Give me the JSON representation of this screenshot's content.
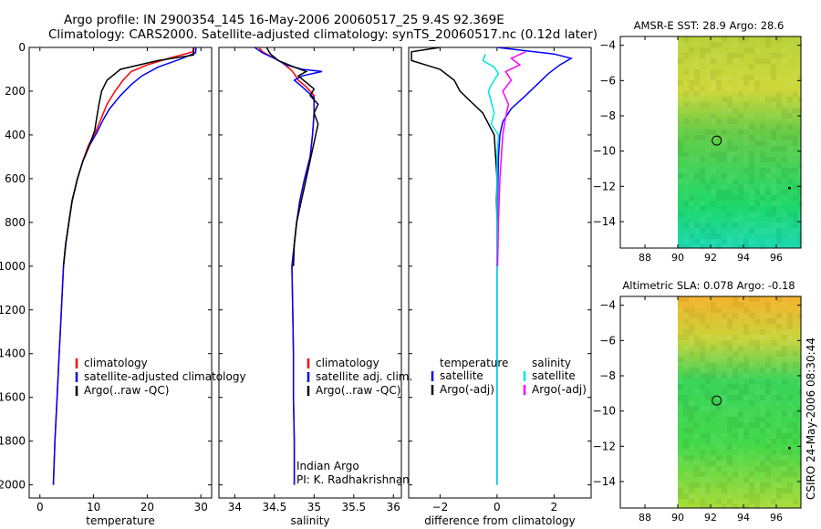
{
  "title": {
    "line1": "Argo profile: IN 2900354_145 16-May-2006 20060517_25 9.4S 92.369E",
    "line2": "Climatology: CARS2000. Satellite-adjusted climatology: synTS_20060517.nc (0.12d later)"
  },
  "side_label": "CSIRO 24-May-2006 08:30:44",
  "colors": {
    "climatology": "#ff0000",
    "satellite": "#0000ff",
    "argo": "#000000",
    "sal_satellite": "#00e5e5",
    "sal_argo": "#ff00ff"
  },
  "chart_data": [
    {
      "type": "line",
      "id": "temperature",
      "xlabel": "temperature",
      "xlim": [
        -2,
        32
      ],
      "xticks": [
        0,
        10,
        20,
        30
      ],
      "ylim": [
        0,
        2060
      ],
      "yreversed": true,
      "yticks": [
        0,
        200,
        400,
        600,
        800,
        1000,
        1200,
        1400,
        1600,
        1800,
        2000
      ],
      "legend": [
        "climatology",
        "satellite-adjusted climatology",
        "Argo(..raw -QC)"
      ],
      "series": [
        {
          "name": "climatology",
          "color": "#ff0000",
          "points": [
            [
              28.6,
              0
            ],
            [
              28.5,
              20
            ],
            [
              24,
              50
            ],
            [
              20,
              80
            ],
            [
              17,
              110
            ],
            [
              15.5,
              150
            ],
            [
              14,
              200
            ],
            [
              12.5,
              260
            ],
            [
              11.5,
              320
            ],
            [
              10.5,
              380
            ],
            [
              9,
              450
            ],
            [
              8,
              520
            ],
            [
              7,
              600
            ],
            [
              6,
              700
            ],
            [
              5.4,
              800
            ],
            [
              4.8,
              900
            ],
            [
              4.4,
              1000
            ],
            [
              4,
              1200
            ],
            [
              3.6,
              1400
            ],
            [
              3.2,
              1600
            ],
            [
              2.8,
              1800
            ],
            [
              2.5,
              2000
            ]
          ]
        },
        {
          "name": "satellite-adjusted climatology",
          "color": "#0000ff",
          "points": [
            [
              29.1,
              0
            ],
            [
              29,
              25
            ],
            [
              26,
              55
            ],
            [
              22,
              90
            ],
            [
              19,
              130
            ],
            [
              17,
              170
            ],
            [
              15,
              220
            ],
            [
              13,
              280
            ],
            [
              11.8,
              330
            ],
            [
              10.6,
              390
            ],
            [
              9.2,
              450
            ],
            [
              8,
              520
            ],
            [
              7,
              600
            ],
            [
              6,
              700
            ],
            [
              5.4,
              800
            ],
            [
              4.8,
              900
            ],
            [
              4.4,
              1000
            ],
            [
              4,
              1200
            ],
            [
              3.6,
              1400
            ],
            [
              3.2,
              1600
            ],
            [
              2.8,
              1800
            ],
            [
              2.5,
              2000
            ]
          ]
        },
        {
          "name": "Argo(..raw -QC)",
          "color": "#000000",
          "points": [
            [
              28.7,
              0
            ],
            [
              28.6,
              35
            ],
            [
              22,
              60
            ],
            [
              15,
              100
            ],
            [
              12.5,
              150
            ],
            [
              11.5,
              200
            ],
            [
              11,
              260
            ],
            [
              10.6,
              320
            ],
            [
              10.2,
              380
            ],
            [
              9.2,
              450
            ],
            [
              8,
              520
            ],
            [
              7,
              600
            ],
            [
              6,
              700
            ],
            [
              5.4,
              800
            ],
            [
              4.8,
              900
            ],
            [
              4.4,
              1000
            ]
          ]
        }
      ]
    },
    {
      "type": "line",
      "id": "salinity",
      "xlabel": "salinity",
      "xlim": [
        33.8,
        36.1
      ],
      "xticks": [
        34,
        34.5,
        35,
        35.5,
        36
      ],
      "xticklabels": [
        "34",
        "34.5",
        "35",
        "35.5",
        "36"
      ],
      "ylim": [
        0,
        2060
      ],
      "yreversed": true,
      "legend": [
        "climatology",
        "satellite adj. clim.",
        "Argo(..raw -QC)"
      ],
      "annotation": [
        "Indian Argo",
        "PI: K. Radhakrishnan"
      ],
      "series": [
        {
          "name": "climatology",
          "color": "#ff0000",
          "points": [
            [
              34.3,
              0
            ],
            [
              34.35,
              20
            ],
            [
              34.45,
              40
            ],
            [
              34.6,
              70
            ],
            [
              34.7,
              100
            ],
            [
              34.75,
              120
            ],
            [
              34.8,
              150
            ],
            [
              34.9,
              180
            ],
            [
              35,
              220
            ],
            [
              35,
              300
            ],
            [
              34.98,
              400
            ],
            [
              34.95,
              500
            ],
            [
              34.88,
              600
            ],
            [
              34.82,
              700
            ],
            [
              34.78,
              800
            ],
            [
              34.75,
              900
            ],
            [
              34.72,
              1000
            ],
            [
              34.73,
              1200
            ],
            [
              34.74,
              1400
            ],
            [
              34.74,
              1600
            ],
            [
              34.75,
              1800
            ],
            [
              34.75,
              2000
            ]
          ]
        },
        {
          "name": "satellite adj. clim.",
          "color": "#0000ff",
          "points": [
            [
              34.25,
              0
            ],
            [
              34.35,
              25
            ],
            [
              34.5,
              50
            ],
            [
              34.65,
              80
            ],
            [
              34.85,
              100
            ],
            [
              35.1,
              110
            ],
            [
              34.85,
              130
            ],
            [
              34.75,
              150
            ],
            [
              34.85,
              180
            ],
            [
              35,
              230
            ],
            [
              35,
              300
            ],
            [
              34.98,
              400
            ],
            [
              34.95,
              500
            ],
            [
              34.88,
              600
            ],
            [
              34.82,
              700
            ],
            [
              34.78,
              800
            ],
            [
              34.75,
              900
            ],
            [
              34.72,
              1000
            ],
            [
              34.73,
              1200
            ],
            [
              34.74,
              1400
            ],
            [
              34.74,
              1600
            ],
            [
              34.75,
              1800
            ],
            [
              34.75,
              2000
            ]
          ]
        },
        {
          "name": "Argo(..raw -QC)",
          "color": "#000000",
          "points": [
            [
              34.4,
              0
            ],
            [
              34.45,
              30
            ],
            [
              34.55,
              60
            ],
            [
              34.75,
              90
            ],
            [
              34.9,
              110
            ],
            [
              34.8,
              130
            ],
            [
              34.9,
              160
            ],
            [
              35,
              190
            ],
            [
              34.95,
              220
            ],
            [
              35.05,
              260
            ],
            [
              35,
              300
            ],
            [
              35.05,
              350
            ],
            [
              35.02,
              400
            ],
            [
              34.96,
              500
            ],
            [
              34.9,
              600
            ],
            [
              34.84,
              700
            ],
            [
              34.78,
              800
            ],
            [
              34.75,
              900
            ],
            [
              34.74,
              1000
            ]
          ]
        }
      ]
    },
    {
      "type": "line",
      "id": "difference",
      "xlabel": "difference from climatology",
      "xlim": [
        -3.1,
        3.3
      ],
      "xticks": [
        -2,
        0,
        2
      ],
      "ylim": [
        0,
        2060
      ],
      "yreversed": true,
      "legend_columns": [
        {
          "title": "temperature",
          "items": [
            "satellite",
            "Argo(-adj)"
          ]
        },
        {
          "title": "salinity",
          "items": [
            "satellite",
            "Argo(-adj)"
          ]
        }
      ],
      "series": [
        {
          "name": "temperature satellite",
          "color": "#0000ff",
          "points": [
            [
              0,
              0
            ],
            [
              1,
              15
            ],
            [
              2,
              30
            ],
            [
              2.6,
              50
            ],
            [
              2.2,
              80
            ],
            [
              1.8,
              120
            ],
            [
              1.4,
              170
            ],
            [
              1,
              220
            ],
            [
              0.5,
              280
            ],
            [
              0.2,
              340
            ],
            [
              0.1,
              400
            ],
            [
              0.05,
              500
            ],
            [
              0.02,
              700
            ],
            [
              0,
              1000
            ],
            [
              0,
              2000
            ]
          ]
        },
        {
          "name": "temperature Argo(-adj)",
          "color": "#000000",
          "points": [
            [
              -2,
              0
            ],
            [
              -3,
              20
            ],
            [
              -3,
              60
            ],
            [
              -2.5,
              80
            ],
            [
              -2,
              100
            ],
            [
              -1.5,
              150
            ],
            [
              -1.3,
              200
            ],
            [
              -0.9,
              250
            ],
            [
              -0.5,
              300
            ],
            [
              -0.3,
              350
            ],
            [
              -0.1,
              400
            ],
            [
              -0.05,
              500
            ],
            [
              0,
              600
            ],
            [
              -0.02,
              700
            ],
            [
              0,
              800
            ],
            [
              0,
              1000
            ]
          ]
        },
        {
          "name": "salinity satellite",
          "color": "#00e5e5",
          "points": [
            [
              -0.4,
              30
            ],
            [
              -0.5,
              60
            ],
            [
              -0.1,
              90
            ],
            [
              0.05,
              120
            ],
            [
              -0.2,
              170
            ],
            [
              -0.3,
              200
            ],
            [
              -0.2,
              250
            ],
            [
              -0.1,
              300
            ],
            [
              -0.2,
              350
            ],
            [
              0.05,
              400
            ],
            [
              0,
              500
            ],
            [
              0,
              1000
            ],
            [
              0,
              2000
            ]
          ]
        },
        {
          "name": "salinity Argo(-adj)",
          "color": "#ff00ff",
          "points": [
            [
              1,
              20
            ],
            [
              0.5,
              50
            ],
            [
              0.8,
              80
            ],
            [
              0.3,
              110
            ],
            [
              0.5,
              150
            ],
            [
              0.2,
              200
            ],
            [
              0.4,
              260
            ],
            [
              0.3,
              320
            ],
            [
              0.2,
              400
            ],
            [
              0.15,
              500
            ],
            [
              0.1,
              600
            ],
            [
              0.05,
              800
            ],
            [
              0.02,
              1000
            ]
          ]
        }
      ]
    },
    {
      "type": "heatmap",
      "id": "sst_map",
      "title": "AMSR-E SST: 28.9 Argo: 28.6",
      "xlim": [
        86.5,
        97.5
      ],
      "ylim": [
        -15.5,
        -3.5
      ],
      "xticks": [
        88,
        90,
        92,
        94,
        96
      ],
      "yticks": [
        -4,
        -6,
        -8,
        -10,
        -12,
        -14
      ],
      "data_xrange": [
        90,
        97.5
      ],
      "marker": {
        "lon": 92.37,
        "lat": -9.4
      }
    },
    {
      "type": "heatmap",
      "id": "sla_map",
      "title": "Altimetric SLA: 0.078 Argo: -0.18",
      "xlim": [
        86.5,
        97.5
      ],
      "ylim": [
        -15.5,
        -3.5
      ],
      "xticks": [
        88,
        90,
        92,
        94,
        96
      ],
      "yticks": [
        -4,
        -6,
        -8,
        -10,
        -12,
        -14
      ],
      "data_xrange": [
        90,
        97.5
      ],
      "marker": {
        "lon": 92.37,
        "lat": -9.4
      }
    }
  ]
}
